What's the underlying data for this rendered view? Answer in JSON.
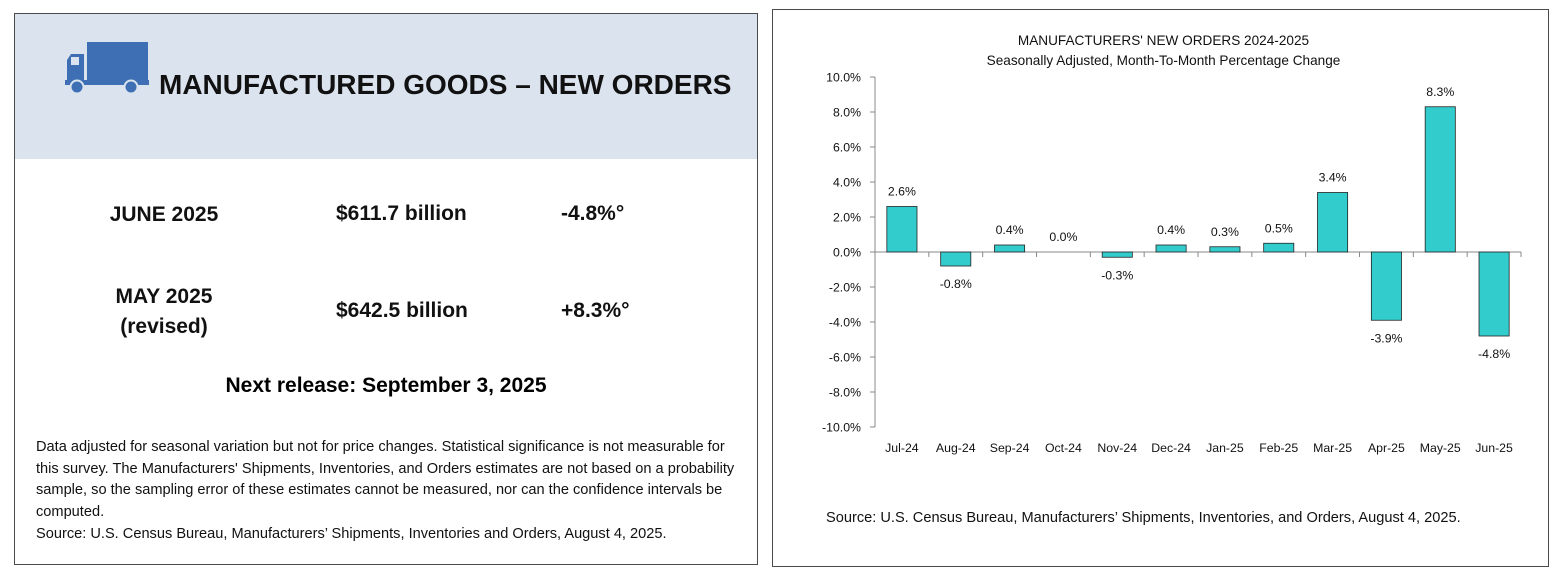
{
  "left_panel": {
    "title": "MANUFACTURED GOODS – NEW ORDERS",
    "banner_color": "#dbe3ef",
    "icon": "truck-icon",
    "icon_color": "#3e6fb4",
    "rows": [
      {
        "period": "JUNE 2025",
        "period_note": "",
        "value": "$611.7 billion",
        "change": "-4.8%°"
      },
      {
        "period": "MAY 2025",
        "period_note": "(revised)",
        "value": "$642.5 billion",
        "change": "+8.3%°"
      }
    ],
    "next_release": "Next release: September 3, 2025",
    "note": "Data adjusted for seasonal variation but not for price changes. Statistical significance is not measurable for this survey.  The Manufacturers' Shipments, Inventories, and Orders estimates are not based on a probability sample, so the sampling error of these estimates cannot be measured, nor can the confidence intervals be computed.",
    "source": "Source: U.S. Census Bureau, Manufacturers’ Shipments, Inventories and Orders, August 4, 2025."
  },
  "chart_data": {
    "type": "bar",
    "title": "MANUFACTURERS' NEW ORDERS 2024-2025",
    "subtitle": "Seasonally Adjusted,  Month-To-Month Percentage Change",
    "categories": [
      "Jul-24",
      "Aug-24",
      "Sep-24",
      "Oct-24",
      "Nov-24",
      "Dec-24",
      "Jan-25",
      "Feb-25",
      "Mar-25",
      "Apr-25",
      "May-25",
      "Jun-25"
    ],
    "values": [
      2.6,
      -0.8,
      0.4,
      0.0,
      -0.3,
      0.4,
      0.3,
      0.5,
      3.4,
      -3.9,
      8.3,
      -4.8
    ],
    "labels": [
      "2.6%",
      "-0.8%",
      "0.4%",
      "0.0%",
      "-0.3%",
      "0.4%",
      "0.3%",
      "0.5%",
      "3.4%",
      "-3.9%",
      "8.3%",
      "-4.8%"
    ],
    "ylim": [
      -10,
      10
    ],
    "yticks": [
      10,
      8,
      6,
      4,
      2,
      0,
      -2,
      -4,
      -6,
      -8,
      -10
    ],
    "ytick_labels": [
      "10.0%",
      "8.0%",
      "6.0%",
      "4.0%",
      "2.0%",
      "0.0%",
      "-2.0%",
      "-4.0%",
      "-6.0%",
      "-8.0%",
      "-10.0%"
    ],
    "xlabel": "",
    "ylabel": "",
    "grid": false,
    "bar_color": "#33cccc",
    "source": "Source: U.S. Census Bureau, Manufacturers’ Shipments, Inventories, and Orders, August 4, 2025."
  }
}
